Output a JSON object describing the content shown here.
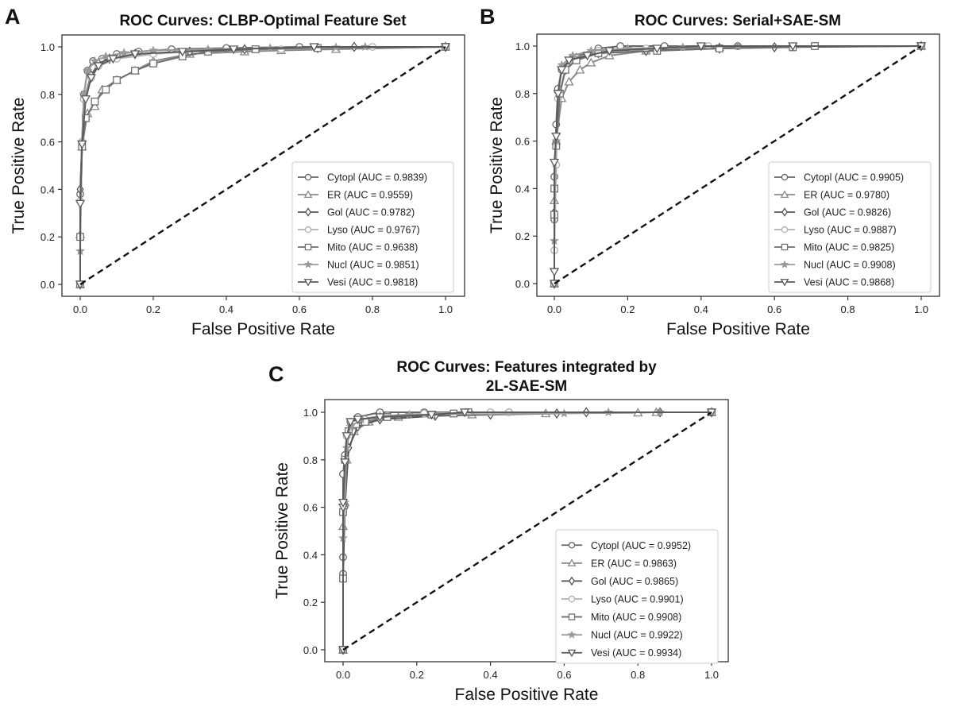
{
  "figure": {
    "panels": [
      "A",
      "B",
      "C"
    ]
  },
  "chart_data": [
    {
      "panel": "A",
      "type": "line",
      "title": "ROC Curves: CLBP-Optimal Feature Set",
      "title_lines": [
        "ROC Curves: CLBP-Optimal Feature Set"
      ],
      "xlabel": "False Positive Rate",
      "ylabel": "True Positive Rate",
      "xlim": [
        -0.05,
        1.05
      ],
      "ylim": [
        -0.05,
        1.05
      ],
      "xticks": [
        "0.0",
        "0.2",
        "0.4",
        "0.6",
        "0.8",
        "1.0"
      ],
      "yticks": [
        "0.0",
        "0.2",
        "0.4",
        "0.6",
        "0.8",
        "1.0"
      ],
      "legend_position": "lower-right",
      "diagonal": {
        "style": "dashed",
        "color": "#111111",
        "x": [
          0,
          1
        ],
        "y": [
          0,
          1
        ]
      },
      "series": [
        {
          "name": "Cytopl",
          "auc": "0.9839",
          "label": "Cytopl (AUC = 0.9839)",
          "marker": "circle",
          "color": "#666666",
          "x": [
            0,
            0,
            0.005,
            0.01,
            0.02,
            0.035,
            0.06,
            0.1,
            0.16,
            0.25,
            0.4,
            0.6,
            1.0
          ],
          "y": [
            0,
            0.38,
            0.6,
            0.8,
            0.9,
            0.94,
            0.95,
            0.97,
            0.98,
            0.99,
            0.995,
            1.0,
            1.0
          ]
        },
        {
          "name": "ER",
          "auc": "0.9559",
          "label": "ER (AUC = 0.9559)",
          "marker": "triangle-up",
          "color": "#888888",
          "x": [
            0,
            0,
            0.005,
            0.02,
            0.04,
            0.06,
            0.1,
            0.15,
            0.2,
            0.3,
            0.45,
            0.55,
            0.7,
            1.0
          ],
          "y": [
            0,
            0.21,
            0.58,
            0.72,
            0.75,
            0.82,
            0.86,
            0.9,
            0.94,
            0.97,
            0.98,
            0.985,
            0.99,
            1.0
          ]
        },
        {
          "name": "Gol",
          "auc": "0.9782",
          "label": "Gol (AUC = 0.9782)",
          "marker": "diamond",
          "color": "#555555",
          "x": [
            0,
            0,
            0.005,
            0.01,
            0.03,
            0.05,
            0.08,
            0.15,
            0.3,
            0.45,
            0.65,
            0.75,
            1.0
          ],
          "y": [
            0,
            0.4,
            0.6,
            0.78,
            0.88,
            0.93,
            0.95,
            0.97,
            0.98,
            0.99,
            0.995,
            1.0,
            1.0
          ]
        },
        {
          "name": "Lyso",
          "auc": "0.9767",
          "label": "Lyso (AUC = 0.9767)",
          "marker": "circle",
          "color": "#b0b0b0",
          "x": [
            0,
            0,
            0.005,
            0.01,
            0.03,
            0.05,
            0.1,
            0.2,
            0.35,
            0.55,
            0.8,
            1.0
          ],
          "y": [
            0,
            0.35,
            0.6,
            0.78,
            0.87,
            0.92,
            0.95,
            0.97,
            0.985,
            0.99,
            1.0,
            1.0
          ]
        },
        {
          "name": "Mito",
          "auc": "0.9638",
          "label": "Mito (AUC = 0.9638)",
          "marker": "square",
          "color": "#707070",
          "x": [
            0,
            0,
            0.005,
            0.015,
            0.04,
            0.07,
            0.1,
            0.15,
            0.2,
            0.28,
            0.35,
            0.48,
            0.65,
            1.0
          ],
          "y": [
            0,
            0.2,
            0.58,
            0.7,
            0.77,
            0.82,
            0.86,
            0.9,
            0.93,
            0.96,
            0.98,
            0.99,
            0.995,
            1.0
          ]
        },
        {
          "name": "Nucl",
          "auc": "0.9851",
          "label": "Nucl (AUC = 0.9851)",
          "marker": "star",
          "color": "#999999",
          "x": [
            0,
            0,
            0.005,
            0.01,
            0.02,
            0.04,
            0.07,
            0.12,
            0.2,
            0.35,
            0.52,
            0.7,
            0.78,
            1.0
          ],
          "y": [
            0,
            0.14,
            0.6,
            0.8,
            0.9,
            0.94,
            0.96,
            0.975,
            0.985,
            0.99,
            0.995,
            0.998,
            1.0,
            1.0
          ]
        },
        {
          "name": "Vesi",
          "auc": "0.9818",
          "label": "Vesi (AUC = 0.9818)",
          "marker": "triangle-down",
          "color": "#5a5a5a",
          "x": [
            0,
            0,
            0.005,
            0.015,
            0.03,
            0.05,
            0.09,
            0.15,
            0.28,
            0.42,
            0.64,
            1.0
          ],
          "y": [
            0,
            0.34,
            0.59,
            0.78,
            0.87,
            0.92,
            0.95,
            0.97,
            0.98,
            0.99,
            1.0,
            1.0
          ]
        }
      ]
    },
    {
      "panel": "B",
      "type": "line",
      "title": "ROC Curves: Serial+SAE-SM",
      "title_lines": [
        "ROC Curves: Serial+SAE-SM"
      ],
      "xlabel": "False Positive Rate",
      "ylabel": "True Positive Rate",
      "xlim": [
        -0.05,
        1.05
      ],
      "ylim": [
        -0.05,
        1.05
      ],
      "xticks": [
        "0.0",
        "0.2",
        "0.4",
        "0.6",
        "0.8",
        "1.0"
      ],
      "yticks": [
        "0.0",
        "0.2",
        "0.4",
        "0.6",
        "0.8",
        "1.0"
      ],
      "legend_position": "lower-right",
      "diagonal": {
        "style": "dashed",
        "color": "#111111",
        "x": [
          0,
          1
        ],
        "y": [
          0,
          1
        ]
      },
      "series": [
        {
          "name": "Cytopl",
          "auc": "0.9905",
          "label": "Cytopl (AUC = 0.9905)",
          "marker": "circle",
          "color": "#666666",
          "x": [
            0,
            0,
            0.0,
            0.005,
            0.01,
            0.02,
            0.05,
            0.12,
            0.18,
            0.3,
            0.5,
            1.0
          ],
          "y": [
            0,
            0.27,
            0.45,
            0.67,
            0.82,
            0.9,
            0.95,
            0.99,
            1.0,
            1.0,
            1.0,
            1.0
          ]
        },
        {
          "name": "ER",
          "auc": "0.9780",
          "label": "ER (AUC = 0.9780)",
          "marker": "triangle-up",
          "color": "#888888",
          "x": [
            0,
            0,
            0.005,
            0.02,
            0.04,
            0.07,
            0.1,
            0.15,
            0.25,
            0.45,
            1.0
          ],
          "y": [
            0,
            0.35,
            0.6,
            0.78,
            0.85,
            0.9,
            0.93,
            0.96,
            0.98,
            0.995,
            1.0
          ]
        },
        {
          "name": "Gol",
          "auc": "0.9826",
          "label": "Gol (AUC = 0.9826)",
          "marker": "diamond",
          "color": "#555555",
          "x": [
            0,
            0,
            0.005,
            0.015,
            0.03,
            0.06,
            0.12,
            0.25,
            0.45,
            0.6,
            1.0
          ],
          "y": [
            0,
            0.3,
            0.6,
            0.8,
            0.9,
            0.95,
            0.97,
            0.98,
            0.99,
            0.995,
            1.0
          ]
        },
        {
          "name": "Lyso",
          "auc": "0.9887",
          "label": "Lyso (AUC = 0.9887)",
          "marker": "circle",
          "color": "#b0b0b0",
          "x": [
            0,
            0,
            0.005,
            0.01,
            0.03,
            0.06,
            0.12,
            0.25,
            0.42,
            1.0
          ],
          "y": [
            0,
            0.14,
            0.5,
            0.78,
            0.9,
            0.95,
            0.98,
            0.99,
            1.0,
            1.0
          ]
        },
        {
          "name": "Mito",
          "auc": "0.9825",
          "label": "Mito (AUC = 0.9825)",
          "marker": "square",
          "color": "#707070",
          "x": [
            0,
            0,
            0.0,
            0.005,
            0.015,
            0.03,
            0.06,
            0.12,
            0.28,
            0.45,
            0.65,
            0.71,
            1.0
          ],
          "y": [
            0,
            0.29,
            0.4,
            0.58,
            0.8,
            0.9,
            0.94,
            0.97,
            0.98,
            0.99,
            0.995,
            1.0,
            1.0
          ]
        },
        {
          "name": "Nucl",
          "auc": "0.9908",
          "label": "Nucl (AUC = 0.9908)",
          "marker": "star",
          "color": "#999999",
          "x": [
            0,
            0,
            0.005,
            0.01,
            0.02,
            0.05,
            0.1,
            0.2,
            0.35,
            0.5,
            1.0
          ],
          "y": [
            0,
            0.18,
            0.6,
            0.8,
            0.92,
            0.96,
            0.98,
            0.99,
            0.995,
            1.0,
            1.0
          ]
        },
        {
          "name": "Vesi",
          "auc": "0.9868",
          "label": "Vesi (AUC = 0.9868)",
          "marker": "triangle-down",
          "color": "#5a5a5a",
          "x": [
            0,
            0,
            0.0,
            0.005,
            0.01,
            0.02,
            0.04,
            0.09,
            0.15,
            0.28,
            0.4,
            0.65,
            1.0
          ],
          "y": [
            0,
            0.05,
            0.51,
            0.62,
            0.8,
            0.9,
            0.94,
            0.96,
            0.98,
            0.99,
            1.0,
            1.0,
            1.0
          ]
        }
      ]
    },
    {
      "panel": "C",
      "type": "line",
      "title": "ROC Curves: Features integrated by 2L-SAE-SM",
      "title_lines": [
        "ROC Curves: Features integrated by",
        "2L-SAE-SM"
      ],
      "xlabel": "False Positive Rate",
      "ylabel": "True Positive Rate",
      "xlim": [
        -0.05,
        1.05
      ],
      "ylim": [
        -0.05,
        1.05
      ],
      "xticks": [
        "0.0",
        "0.2",
        "0.4",
        "0.6",
        "0.8",
        "1.0"
      ],
      "yticks": [
        "0.0",
        "0.2",
        "0.4",
        "0.6",
        "0.8",
        "1.0"
      ],
      "legend_position": "lower-right",
      "diagonal": {
        "style": "dashed",
        "color": "#111111",
        "x": [
          0,
          1
        ],
        "y": [
          0,
          1
        ]
      },
      "series": [
        {
          "name": "Cytopl",
          "auc": "0.9952",
          "label": "Cytopl (AUC = 0.9952)",
          "marker": "circle",
          "color": "#666666",
          "x": [
            0,
            0,
            0.0,
            0.0,
            0.005,
            0.01,
            0.02,
            0.04,
            0.1,
            0.22,
            0.45,
            1.0
          ],
          "y": [
            0,
            0.32,
            0.39,
            0.74,
            0.82,
            0.9,
            0.96,
            0.98,
            1.0,
            1.0,
            1.0,
            1.0
          ]
        },
        {
          "name": "ER",
          "auc": "0.9863",
          "label": "ER (AUC = 0.9863)",
          "marker": "triangle-up",
          "color": "#888888",
          "x": [
            0,
            0,
            0.005,
            0.01,
            0.03,
            0.07,
            0.15,
            0.35,
            0.55,
            0.8,
            0.85,
            1.0
          ],
          "y": [
            0,
            0.52,
            0.62,
            0.8,
            0.92,
            0.96,
            0.98,
            0.99,
            0.995,
            0.998,
            1.0,
            1.0
          ]
        },
        {
          "name": "Gol",
          "auc": "0.9865",
          "label": "Gol (AUC = 0.9865)",
          "marker": "diamond",
          "color": "#555555",
          "x": [
            0,
            0,
            0.005,
            0.015,
            0.04,
            0.1,
            0.25,
            0.4,
            0.58,
            0.66,
            0.86,
            1.0
          ],
          "y": [
            0,
            0.3,
            0.6,
            0.85,
            0.94,
            0.97,
            0.985,
            0.99,
            0.995,
            1.0,
            1.0,
            1.0
          ]
        },
        {
          "name": "Lyso",
          "auc": "0.9901",
          "label": "Lyso (AUC = 0.9901)",
          "marker": "circle",
          "color": "#b0b0b0",
          "x": [
            0,
            0,
            0.005,
            0.01,
            0.03,
            0.06,
            0.12,
            0.22,
            0.4,
            0.45,
            1.0
          ],
          "y": [
            0,
            0.58,
            0.8,
            0.9,
            0.95,
            0.97,
            0.985,
            0.995,
            1.0,
            1.0,
            1.0
          ]
        },
        {
          "name": "Mito",
          "auc": "0.9908",
          "label": "Mito (AUC = 0.9908)",
          "marker": "square",
          "color": "#707070",
          "x": [
            0,
            0,
            0.0,
            0.005,
            0.015,
            0.035,
            0.06,
            0.12,
            0.24,
            0.3,
            0.34,
            1.0
          ],
          "y": [
            0,
            0.3,
            0.58,
            0.8,
            0.92,
            0.95,
            0.96,
            0.98,
            0.99,
            0.995,
            1.0,
            1.0
          ]
        },
        {
          "name": "Nucl",
          "auc": "0.9922",
          "label": "Nucl (AUC = 0.9922)",
          "marker": "star",
          "color": "#999999",
          "x": [
            0,
            0,
            0.005,
            0.01,
            0.02,
            0.05,
            0.1,
            0.18,
            0.6,
            0.72,
            0.86,
            1.0
          ],
          "y": [
            0,
            0.47,
            0.62,
            0.85,
            0.94,
            0.97,
            0.985,
            0.99,
            0.995,
            1.0,
            1.0,
            1.0
          ]
        },
        {
          "name": "Vesi",
          "auc": "0.9934",
          "label": "Vesi (AUC = 0.9934)",
          "marker": "triangle-down",
          "color": "#5a5a5a",
          "x": [
            0,
            0,
            0.0,
            0.005,
            0.01,
            0.02,
            0.04,
            0.1,
            0.24,
            0.33,
            1.0
          ],
          "y": [
            0,
            0.6,
            0.62,
            0.79,
            0.9,
            0.96,
            0.97,
            0.98,
            0.99,
            1.0,
            1.0
          ]
        }
      ]
    }
  ]
}
